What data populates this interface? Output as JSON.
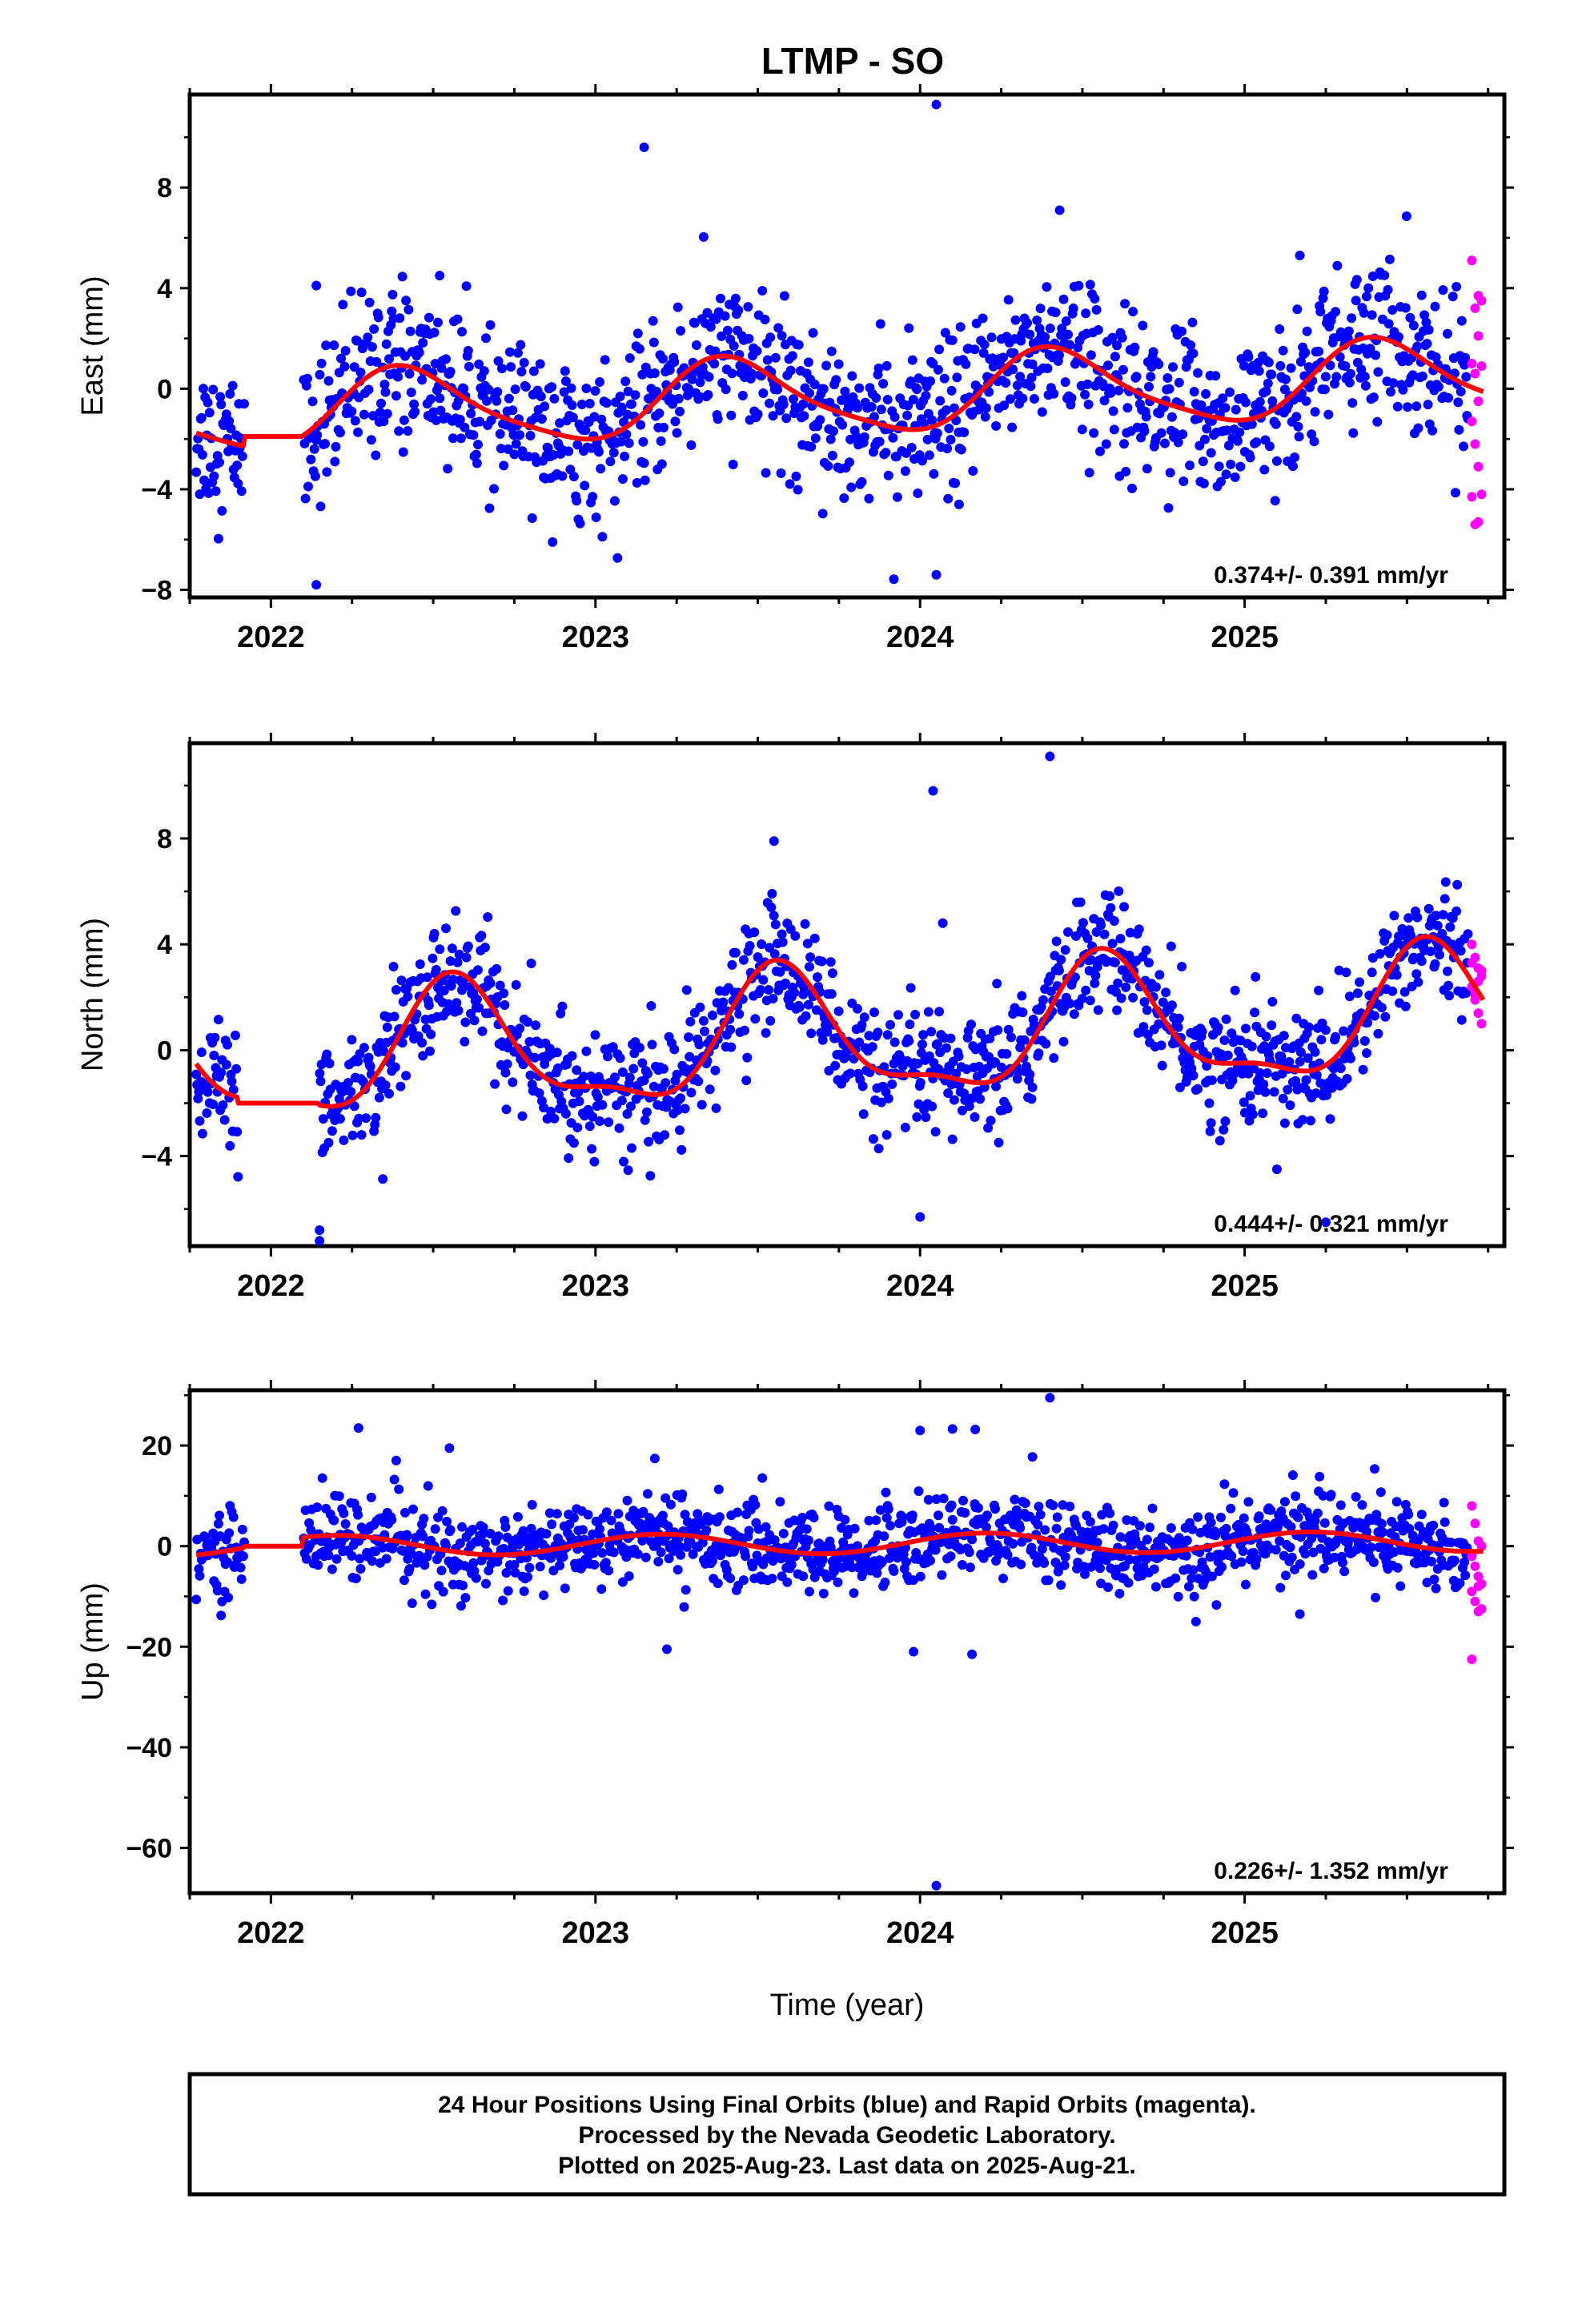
{
  "title": "LTMP - SO",
  "footer": {
    "lines": [
      "24 Hour Positions Using Final Orbits (blue) and Rapid Orbits (magenta).",
      "Processed by the Nevada Geodetic Laboratory.",
      "Plotted on 2025-Aug-23. Last data on 2025-Aug-21."
    ]
  },
  "chart_data": [
    {
      "type": "scatter",
      "ylabel": "East (mm)",
      "xlabel": "",
      "xlim": [
        2021.75,
        2025.8
      ],
      "ylim": [
        -8.3,
        11.7
      ],
      "yticks": [
        -8,
        -4,
        0,
        4,
        8
      ],
      "yticks_minor": [
        -6,
        -2,
        2,
        6,
        10
      ],
      "xticks": [
        2022,
        2023,
        2024,
        2025
      ],
      "xtick_labels": [
        "2022",
        "2023",
        "2024",
        "2025"
      ],
      "rate_label": "0.374+/- 0.391 mm/yr",
      "colors": {
        "final": "#0000ff",
        "rapid": "#ff00ff",
        "model": "#ff0000"
      },
      "outliers": [
        [
          2022.14,
          4.1
        ],
        [
          2022.14,
          -7.8
        ],
        [
          2022.52,
          4.5
        ],
        [
          2023.15,
          9.6
        ],
        [
          2024.05,
          11.3
        ],
        [
          2024.05,
          -7.4
        ],
        [
          2024.43,
          7.1
        ],
        [
          2025.17,
          5.3
        ],
        [
          2024.12,
          -4.6
        ]
      ],
      "rapid": [
        [
          2025.7,
          5.1
        ],
        [
          2025.71,
          3.2
        ],
        [
          2025.72,
          3.7
        ],
        [
          2025.73,
          3.5
        ],
        [
          2025.7,
          1.0
        ],
        [
          2025.71,
          0.6
        ],
        [
          2025.72,
          -0.5
        ],
        [
          2025.7,
          -1.3
        ],
        [
          2025.71,
          -2.2
        ],
        [
          2025.72,
          -3.1
        ],
        [
          2025.7,
          -4.3
        ],
        [
          2025.71,
          -5.4
        ],
        [
          2025.72,
          -5.3
        ],
        [
          2025.73,
          -4.2
        ],
        [
          2025.73,
          0.9
        ],
        [
          2025.72,
          2.1
        ]
      ],
      "model_params": {
        "offset": -0.3,
        "trend": 0.374,
        "t0": 2023.75,
        "annual_amp": 1.5,
        "annual_phase_peak": 2023.42,
        "semiannual_amp": 0.3,
        "semiannual_phase_peak": 2023.35,
        "gap": [
          2021.92,
          2022.1
        ],
        "gap_level": -1.9
      },
      "scatter_sigma": 1.5
    },
    {
      "type": "scatter",
      "ylabel": "North (mm)",
      "xlabel": "",
      "xlim": [
        2021.75,
        2025.8
      ],
      "ylim": [
        -7.4,
        11.6
      ],
      "yticks": [
        -4,
        0,
        4,
        8
      ],
      "yticks_minor": [
        -6,
        -2,
        2,
        6,
        10
      ],
      "xticks": [
        2022,
        2023,
        2024,
        2025
      ],
      "xtick_labels": [
        "2022",
        "2023",
        "2024",
        "2025"
      ],
      "rate_label": "0.444+/- 0.321 mm/yr",
      "colors": {
        "final": "#0000ff",
        "rapid": "#ff00ff",
        "model": "#ff0000"
      },
      "outliers": [
        [
          2023.55,
          7.9
        ],
        [
          2024.04,
          9.8
        ],
        [
          2024.4,
          11.1
        ],
        [
          2024.07,
          4.8
        ],
        [
          2024.0,
          -6.3
        ],
        [
          2022.15,
          -6.8
        ],
        [
          2025.25,
          -6.5
        ],
        [
          2022.15,
          -7.2
        ]
      ],
      "rapid": [
        [
          2025.7,
          4.0
        ],
        [
          2025.71,
          3.5
        ],
        [
          2025.72,
          3.1
        ],
        [
          2025.73,
          2.8
        ],
        [
          2025.7,
          2.4
        ],
        [
          2025.71,
          1.9
        ],
        [
          2025.72,
          1.4
        ],
        [
          2025.73,
          1.0
        ],
        [
          2025.7,
          3.3
        ],
        [
          2025.72,
          2.6
        ],
        [
          2025.71,
          2.1
        ],
        [
          2025.73,
          3.0
        ]
      ],
      "model_params": {
        "offset": 0.4,
        "trend": 0.444,
        "t0": 2023.75,
        "annual_amp": 2.3,
        "annual_phase_peak": 2023.57,
        "semiannual_amp": 0.8,
        "semiannual_phase_peak": 2023.55,
        "gap": [
          2021.9,
          2022.15
        ],
        "gap_level": -2.0
      },
      "scatter_sigma": 1.15
    },
    {
      "type": "scatter",
      "ylabel": "Up (mm)",
      "xlabel": "Time (year)",
      "xlim": [
        2021.75,
        2025.8
      ],
      "ylim": [
        -69,
        31
      ],
      "yticks": [
        -60,
        -40,
        -20,
        0,
        20
      ],
      "yticks_minor": [
        -50,
        -30,
        -10,
        10,
        30
      ],
      "xticks": [
        2022,
        2023,
        2024,
        2025
      ],
      "xtick_labels": [
        "2022",
        "2023",
        "2024",
        "2025"
      ],
      "rate_label": "0.226+/- 1.352 mm/yr",
      "colors": {
        "final": "#0000ff",
        "rapid": "#ff00ff",
        "model": "#ff0000"
      },
      "outliers": [
        [
          2022.27,
          23.5
        ],
        [
          2022.55,
          19.5
        ],
        [
          2023.22,
          -20.5
        ],
        [
          2024.0,
          23.0
        ],
        [
          2024.1,
          23.3
        ],
        [
          2024.17,
          23.2
        ],
        [
          2024.4,
          29.5
        ],
        [
          2023.98,
          -21.0
        ],
        [
          2024.16,
          -21.5
        ],
        [
          2024.05,
          -67.5
        ],
        [
          2025.17,
          -13.5
        ],
        [
          2024.85,
          -15.0
        ]
      ],
      "rapid": [
        [
          2025.7,
          8.0
        ],
        [
          2025.71,
          4.5
        ],
        [
          2025.72,
          1.0
        ],
        [
          2025.73,
          0.0
        ],
        [
          2025.7,
          -2.0
        ],
        [
          2025.71,
          -4.0
        ],
        [
          2025.72,
          -6.0
        ],
        [
          2025.73,
          -7.5
        ],
        [
          2025.7,
          -9.0
        ],
        [
          2025.71,
          -11.0
        ],
        [
          2025.72,
          -13.0
        ],
        [
          2025.73,
          -12.5
        ],
        [
          2025.7,
          -22.5
        ],
        [
          2025.72,
          -8.0
        ]
      ],
      "model_params": {
        "offset": 0.5,
        "trend": 0.226,
        "t0": 2023.75,
        "annual_amp": 2.0,
        "annual_phase_peak": 2023.2,
        "semiannual_amp": 0.0,
        "semiannual_phase_peak": 2023.2,
        "gap": [
          2021.92,
          2022.1
        ],
        "gap_level": 0.0
      },
      "scatter_sigma": 4.2
    }
  ]
}
